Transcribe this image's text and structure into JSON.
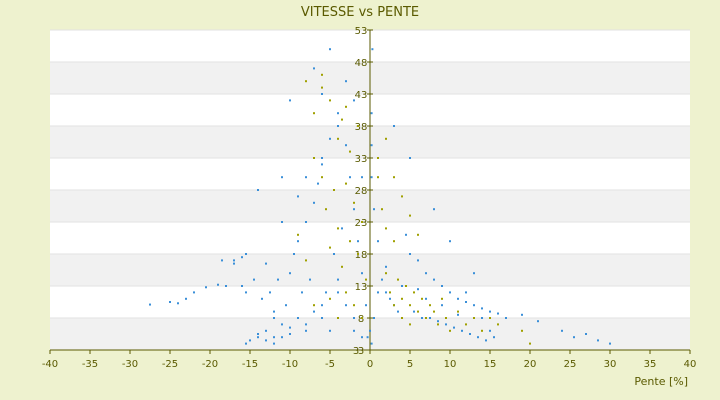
{
  "chart_data": {
    "type": "scatter",
    "title": "VITESSE vs PENTE",
    "xlabel": "Pente [%]",
    "ylabel": "",
    "xlim": [
      -40,
      40
    ],
    "ylim": [
      3,
      53
    ],
    "x_ticks": [
      "-40",
      "-35",
      "-30",
      "-25",
      "-20",
      "-15",
      "-10",
      "-5",
      "0",
      "5",
      "10",
      "15",
      "20",
      "25",
      "30",
      "35",
      "40"
    ],
    "y_ticks": [
      "53",
      "48",
      "43",
      "38",
      "33",
      "28",
      "23",
      "18",
      "13",
      "8",
      "3"
    ],
    "bottom_tick_label": "3",
    "grid": "horizontal bands",
    "legend": "none",
    "colors": {
      "background": "#eef2cf",
      "plot": "#ffffff",
      "band": "#f1f1f1",
      "axis": "#5a5a00",
      "series_blue": "#3a8fd8",
      "series_olive": "#a0a000"
    },
    "series": [
      {
        "color": "#3a8fd8",
        "points": [
          [
            -27.5,
            10.1
          ],
          [
            -25,
            10.5
          ],
          [
            -24,
            10.3
          ],
          [
            -23,
            11
          ],
          [
            -22,
            12
          ],
          [
            -20.5,
            12.8
          ],
          [
            -19,
            13.2
          ],
          [
            -18.5,
            17
          ],
          [
            -17,
            16.5
          ],
          [
            -16,
            13
          ],
          [
            -15.5,
            18
          ],
          [
            -15.5,
            12
          ],
          [
            -15,
            4.5
          ],
          [
            -14.5,
            14
          ],
          [
            -14,
            5
          ],
          [
            -13.5,
            11
          ],
          [
            -13,
            6
          ],
          [
            -12.5,
            12
          ],
          [
            -12,
            8
          ],
          [
            -12,
            4
          ],
          [
            -11.5,
            14
          ],
          [
            -11,
            7
          ],
          [
            -11,
            5
          ],
          [
            -10.5,
            10
          ],
          [
            -10,
            15
          ],
          [
            -10,
            5.5
          ],
          [
            -9.5,
            18
          ],
          [
            -9,
            8
          ],
          [
            -9,
            20
          ],
          [
            -8.5,
            12
          ],
          [
            -8,
            23
          ],
          [
            -8,
            6
          ],
          [
            -7.5,
            14
          ],
          [
            -7,
            26
          ],
          [
            -7,
            9
          ],
          [
            -6.5,
            29
          ],
          [
            -6,
            8
          ],
          [
            -6,
            32
          ],
          [
            -5.5,
            12
          ],
          [
            -5,
            36
          ],
          [
            -5,
            6
          ],
          [
            -4.5,
            18
          ],
          [
            -4,
            38
          ],
          [
            -4,
            14
          ],
          [
            -3.5,
            22
          ],
          [
            -3,
            35
          ],
          [
            -3,
            10
          ],
          [
            -2.5,
            30
          ],
          [
            -2,
            25
          ],
          [
            -2,
            6
          ],
          [
            -1.5,
            20
          ],
          [
            -1,
            30
          ],
          [
            -1,
            15
          ],
          [
            -0.5,
            10
          ],
          [
            -0.3,
            5
          ],
          [
            0.2,
            4
          ],
          [
            0.5,
            8
          ],
          [
            1,
            12
          ],
          [
            1.5,
            14
          ],
          [
            2,
            12
          ],
          [
            2.5,
            11
          ],
          [
            3,
            10
          ],
          [
            3.5,
            9
          ],
          [
            4,
            13
          ],
          [
            4.5,
            21
          ],
          [
            5,
            18
          ],
          [
            5.5,
            9
          ],
          [
            6,
            17
          ],
          [
            6.5,
            8
          ],
          [
            7,
            15
          ],
          [
            7.5,
            8
          ],
          [
            8,
            14
          ],
          [
            8.5,
            7.5
          ],
          [
            9,
            13
          ],
          [
            9.5,
            7
          ],
          [
            10,
            12
          ],
          [
            10.5,
            6.5
          ],
          [
            11,
            11
          ],
          [
            11.5,
            6
          ],
          [
            12,
            10.5
          ],
          [
            12.5,
            5.5
          ],
          [
            13,
            10
          ],
          [
            13.5,
            5
          ],
          [
            14,
            9.5
          ],
          [
            14.5,
            4.5
          ],
          [
            15,
            9
          ],
          [
            15.5,
            5
          ],
          [
            16,
            8.7
          ],
          [
            17,
            8
          ],
          [
            19,
            8.5
          ],
          [
            21,
            7.5
          ],
          [
            24,
            6
          ],
          [
            25.5,
            5
          ],
          [
            27,
            5.5
          ],
          [
            28.5,
            4.5
          ],
          [
            30,
            4
          ],
          [
            -17,
            17
          ],
          [
            -13,
            16.5
          ],
          [
            -11,
            23
          ],
          [
            -9,
            27
          ],
          [
            -8,
            30
          ],
          [
            -6,
            33
          ],
          [
            -12,
            9
          ],
          [
            -16,
            17.5
          ],
          [
            -18,
            13
          ],
          [
            -14,
            5.5
          ],
          [
            -13,
            4.5
          ],
          [
            -15.5,
            4
          ],
          [
            -12,
            5
          ],
          [
            -10,
            6.5
          ],
          [
            -8,
            7
          ],
          [
            -6,
            10
          ],
          [
            -4,
            12
          ],
          [
            -2,
            8
          ],
          [
            -1,
            5
          ],
          [
            0,
            6
          ],
          [
            0.3,
            50
          ],
          [
            -5,
            50
          ],
          [
            -7,
            47
          ],
          [
            -3,
            45
          ],
          [
            -10,
            42
          ],
          [
            -6,
            43
          ],
          [
            -2,
            42
          ],
          [
            3,
            38
          ],
          [
            5,
            33
          ],
          [
            -11,
            30
          ],
          [
            -14,
            28
          ],
          [
            -4,
            40
          ],
          [
            8,
            25
          ],
          [
            10,
            20
          ],
          [
            13,
            15
          ],
          [
            12,
            12
          ],
          [
            14,
            8
          ],
          [
            15,
            6
          ],
          [
            11,
            8.5
          ],
          [
            9,
            10
          ],
          [
            7,
            11
          ],
          [
            6,
            12.5
          ],
          [
            2,
            16
          ],
          [
            1,
            20
          ],
          [
            0.5,
            25
          ],
          [
            0.2,
            30
          ],
          [
            0.2,
            35
          ],
          [
            0.2,
            40
          ]
        ]
      },
      {
        "color": "#a0a000",
        "points": [
          [
            -9,
            21
          ],
          [
            -8,
            17
          ],
          [
            -7,
            33
          ],
          [
            -7,
            10
          ],
          [
            -6,
            30
          ],
          [
            -6,
            44
          ],
          [
            -5.5,
            25
          ],
          [
            -5,
            19
          ],
          [
            -5,
            11
          ],
          [
            -4.5,
            28
          ],
          [
            -4,
            22
          ],
          [
            -4,
            8
          ],
          [
            -3.5,
            39
          ],
          [
            -3.5,
            16
          ],
          [
            -3,
            29
          ],
          [
            -3,
            12
          ],
          [
            -2.5,
            34
          ],
          [
            -2.5,
            20
          ],
          [
            -2,
            26
          ],
          [
            -2,
            10
          ],
          [
            -1.5,
            38
          ],
          [
            -1.5,
            18
          ],
          [
            -1,
            23
          ],
          [
            -1,
            8
          ],
          [
            -0.5,
            14
          ],
          [
            1,
            30
          ],
          [
            1.5,
            25
          ],
          [
            2,
            22
          ],
          [
            2,
            15
          ],
          [
            2.5,
            12
          ],
          [
            3,
            20
          ],
          [
            3,
            10
          ],
          [
            3.5,
            14
          ],
          [
            4,
            11
          ],
          [
            4,
            8
          ],
          [
            4.5,
            13
          ],
          [
            5,
            10
          ],
          [
            5,
            7
          ],
          [
            5.5,
            12
          ],
          [
            6,
            9
          ],
          [
            6.5,
            11
          ],
          [
            7,
            8
          ],
          [
            7.5,
            10
          ],
          [
            8,
            9
          ],
          [
            8.5,
            7
          ],
          [
            9,
            11
          ],
          [
            9.5,
            8
          ],
          [
            10,
            6
          ],
          [
            11,
            9
          ],
          [
            12,
            7
          ],
          [
            13,
            8
          ],
          [
            14,
            6
          ],
          [
            15,
            8
          ],
          [
            16,
            7
          ],
          [
            19,
            6
          ],
          [
            20,
            4
          ],
          [
            -7,
            40
          ],
          [
            -6,
            46
          ],
          [
            -5,
            42
          ],
          [
            -4,
            36
          ],
          [
            -3,
            41
          ],
          [
            -8,
            45
          ],
          [
            1,
            33
          ],
          [
            2,
            36
          ],
          [
            3,
            30
          ],
          [
            4,
            27
          ],
          [
            5,
            24
          ],
          [
            6,
            21
          ]
        ]
      }
    ]
  }
}
